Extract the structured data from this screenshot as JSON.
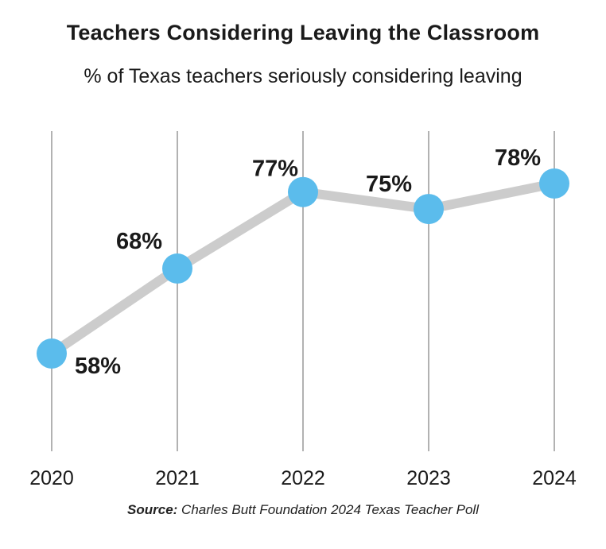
{
  "header": {
    "title": "Teachers Considering Leaving the Classroom",
    "subtitle": "% of Texas teachers seriously considering leaving"
  },
  "source": {
    "label": "Source:",
    "text": "Charles Butt Foundation 2024 Texas Teacher Poll"
  },
  "colors": {
    "line": "#cccccc",
    "marker": "#5bbcec",
    "gridline": "#888888",
    "text": "#1a1a1a"
  },
  "chart_data": {
    "type": "line",
    "title": "Teachers Considering Leaving the Classroom",
    "subtitle": "% of Texas teachers seriously considering leaving",
    "categories": [
      "2020",
      "2021",
      "2022",
      "2023",
      "2024"
    ],
    "values": [
      58,
      68,
      77,
      75,
      78
    ],
    "data_labels": [
      "58%",
      "68%",
      "77%",
      "75%",
      "78%"
    ],
    "unit": "%",
    "ylim": [
      45,
      90
    ],
    "grid": "vertical",
    "legend": "none"
  }
}
